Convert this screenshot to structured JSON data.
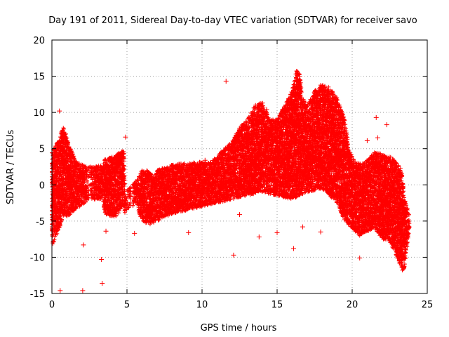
{
  "chart_data": {
    "type": "scatter",
    "title": "Day 191 of 2011, Sidereal Day-to-day VTEC variation (SDTVAR) for receiver savo",
    "xlabel": "GPS time / hours",
    "ylabel": "SDTVAR / TECUs",
    "xlim": [
      0,
      25
    ],
    "ylim": [
      -15,
      20
    ],
    "x_ticks": [
      0,
      5,
      10,
      15,
      20,
      25
    ],
    "y_ticks": [
      -15,
      -10,
      -5,
      0,
      5,
      10,
      15,
      20
    ],
    "grid": true,
    "marker": "+",
    "color": "#ff0000",
    "upper_envelope": [
      [
        0.0,
        4.5
      ],
      [
        0.5,
        6.5
      ],
      [
        0.8,
        8.5
      ],
      [
        1.0,
        6.5
      ],
      [
        1.3,
        5.0
      ],
      [
        1.7,
        3.0
      ],
      [
        2.5,
        2.5
      ],
      [
        3.4,
        2.8
      ],
      [
        3.5,
        3.5
      ],
      [
        4.2,
        4.0
      ],
      [
        4.8,
        5.0
      ],
      [
        4.85,
        -1.0
      ],
      [
        5.6,
        0.5
      ],
      [
        6.0,
        2.0
      ],
      [
        6.5,
        2.0
      ],
      [
        6.8,
        1.0
      ],
      [
        7.0,
        2.0
      ],
      [
        8.0,
        2.8
      ],
      [
        9.0,
        3.0
      ],
      [
        10.0,
        3.2
      ],
      [
        10.5,
        3.0
      ],
      [
        11.0,
        4.0
      ],
      [
        12.0,
        6.0
      ],
      [
        12.5,
        8.0
      ],
      [
        13.0,
        9.0
      ],
      [
        13.5,
        11.0
      ],
      [
        14.0,
        11.5
      ],
      [
        14.5,
        9.0
      ],
      [
        15.0,
        9.0
      ],
      [
        15.5,
        11.0
      ],
      [
        16.0,
        13.0
      ],
      [
        16.3,
        16.0
      ],
      [
        16.5,
        15.5
      ],
      [
        16.7,
        12.0
      ],
      [
        17.0,
        11.0
      ],
      [
        17.5,
        13.0
      ],
      [
        18.0,
        14.0
      ],
      [
        18.5,
        13.5
      ],
      [
        19.0,
        12.0
      ],
      [
        19.5,
        9.0
      ],
      [
        19.8,
        5.0
      ],
      [
        20.2,
        3.0
      ],
      [
        20.8,
        3.0
      ],
      [
        21.5,
        4.5
      ],
      [
        22.5,
        4.0
      ],
      [
        23.0,
        3.0
      ],
      [
        23.3,
        2.0
      ],
      [
        23.5,
        -2.0
      ],
      [
        23.8,
        -4.0
      ]
    ],
    "lower_envelope": [
      [
        0.0,
        -8.5
      ],
      [
        0.5,
        -6.0
      ],
      [
        0.8,
        -4.0
      ],
      [
        1.0,
        -4.5
      ],
      [
        1.5,
        -3.5
      ],
      [
        2.5,
        -2.0
      ],
      [
        3.4,
        -2.0
      ],
      [
        3.5,
        -4.0
      ],
      [
        4.2,
        -4.5
      ],
      [
        4.8,
        -3.0
      ],
      [
        4.85,
        -4.0
      ],
      [
        5.6,
        -2.5
      ],
      [
        6.0,
        -5.0
      ],
      [
        6.5,
        -5.5
      ],
      [
        7.0,
        -5.0
      ],
      [
        8.0,
        -4.0
      ],
      [
        9.0,
        -3.5
      ],
      [
        10.0,
        -3.0
      ],
      [
        11.0,
        -2.5
      ],
      [
        12.0,
        -2.0
      ],
      [
        13.0,
        -1.5
      ],
      [
        14.0,
        -1.0
      ],
      [
        15.0,
        -1.5
      ],
      [
        16.0,
        -2.0
      ],
      [
        17.0,
        -1.0
      ],
      [
        18.0,
        -0.5
      ],
      [
        19.0,
        -2.5
      ],
      [
        19.5,
        -5.0
      ],
      [
        20.0,
        -6.0
      ],
      [
        20.5,
        -7.0
      ],
      [
        21.0,
        -6.5
      ],
      [
        21.5,
        -6.0
      ],
      [
        22.0,
        -7.5
      ],
      [
        22.5,
        -8.0
      ],
      [
        23.0,
        -10.0
      ],
      [
        23.3,
        -12.0
      ],
      [
        23.5,
        -11.5
      ],
      [
        23.8,
        -6.0
      ]
    ],
    "outliers": [
      [
        11.6,
        14.3
      ],
      [
        0.55,
        -14.6
      ],
      [
        2.05,
        -14.6
      ],
      [
        3.35,
        -13.6
      ],
      [
        3.3,
        -10.3
      ],
      [
        12.1,
        -9.7
      ],
      [
        9.1,
        -6.6
      ],
      [
        13.8,
        -7.2
      ],
      [
        16.1,
        -8.8
      ],
      [
        20.5,
        -10.1
      ],
      [
        21.6,
        9.3
      ],
      [
        22.3,
        8.3
      ],
      [
        21.0,
        6.1
      ],
      [
        4.9,
        6.6
      ],
      [
        14.3,
        10.4
      ],
      [
        12.5,
        -4.1
      ],
      [
        16.7,
        -5.8
      ],
      [
        17.9,
        -6.5
      ],
      [
        5.5,
        -6.7
      ],
      [
        0.5,
        10.2
      ],
      [
        2.1,
        -8.3
      ],
      [
        3.6,
        -6.4
      ],
      [
        21.7,
        6.5
      ],
      [
        15.0,
        -6.6
      ],
      [
        10.2,
        3.4
      ]
    ],
    "sparse_gaps": [
      [
        2.3,
        2.8
      ],
      [
        4.9,
        5.4
      ]
    ]
  }
}
